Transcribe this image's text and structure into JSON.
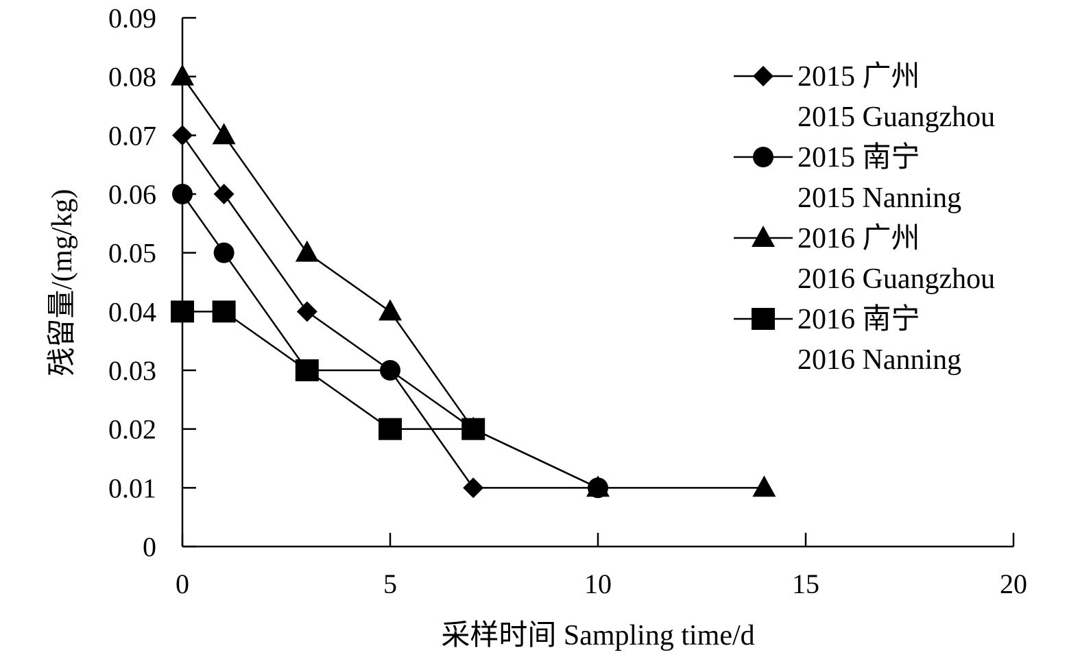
{
  "chart_data": {
    "type": "line",
    "title": "",
    "xlabel": "采样时间 Sampling time/d",
    "ylabel": "残留量/(mg/kg)",
    "xlim": [
      0,
      20
    ],
    "ylim": [
      0,
      0.09
    ],
    "xticks": [
      "0",
      "5",
      "10",
      "15",
      "20"
    ],
    "yticks": [
      "0",
      "0.01",
      "0.02",
      "0.03",
      "0.04",
      "0.05",
      "0.06",
      "0.07",
      "0.08",
      "0.09"
    ],
    "grid": false,
    "legend_position": "right",
    "series": [
      {
        "name_cn": "2015 广州",
        "name_en": "2015 Guangzhou",
        "marker": "diamond",
        "color": "#000000",
        "x": [
          0,
          1,
          3,
          5,
          7,
          10
        ],
        "y": [
          0.07,
          0.06,
          0.04,
          0.03,
          0.01,
          0.01
        ]
      },
      {
        "name_cn": "2015 南宁",
        "name_en": "2015 Nanning",
        "marker": "circle",
        "color": "#000000",
        "x": [
          0,
          1,
          3,
          5,
          7,
          10
        ],
        "y": [
          0.06,
          0.05,
          0.03,
          0.03,
          0.02,
          0.01
        ]
      },
      {
        "name_cn": "2016 广州",
        "name_en": "2016 Guangzhou",
        "marker": "triangle",
        "color": "#000000",
        "x": [
          0,
          1,
          3,
          5,
          7,
          10,
          14
        ],
        "y": [
          0.08,
          0.07,
          0.05,
          0.04,
          0.02,
          0.01,
          0.01
        ]
      },
      {
        "name_cn": "2016 南宁",
        "name_en": "2016 Nanning",
        "marker": "square",
        "color": "#000000",
        "x": [
          0,
          1,
          3,
          5,
          7
        ],
        "y": [
          0.04,
          0.04,
          0.03,
          0.02,
          0.02
        ]
      }
    ]
  }
}
